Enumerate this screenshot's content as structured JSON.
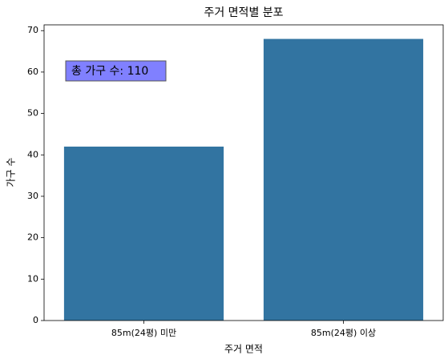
{
  "chart_data": {
    "type": "bar",
    "title": "주거 면적별 분포",
    "x_label": "주거 면적",
    "y_label": "가구 수",
    "categories": [
      "85m(24평) 미만",
      "85m(24평) 이상"
    ],
    "values": [
      42,
      68
    ],
    "color": "#3274a1",
    "ylim": [
      0,
      71.4
    ],
    "yticks": [
      0,
      10,
      20,
      30,
      40,
      50,
      60,
      70
    ],
    "annotation": "총 가구 수: 110",
    "annotation_color": "#8080ff"
  }
}
